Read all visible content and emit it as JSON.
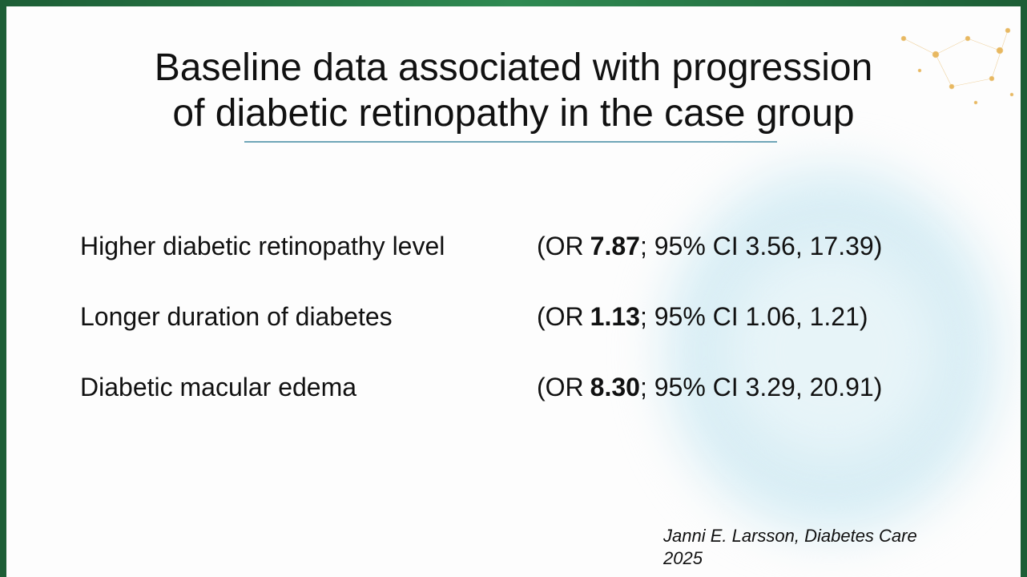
{
  "slide": {
    "title": [
      "Baseline data associated with progression",
      "of diabetic retinopathy in the case group"
    ],
    "rows": [
      {
        "label": "Higher diabetic retinopathy level",
        "or_prefix": "(OR",
        "or": "7.87",
        "ci": "; 95% CI 3.56, 17.39)"
      },
      {
        "label": "Longer duration of diabetes",
        "or_prefix": "(OR",
        "or": "1.13",
        "ci": "; 95% CI 1.06, 1.21)"
      },
      {
        "label": "Diabetic macular edema",
        "or_prefix": "(OR",
        "or": "8.30",
        "ci": "; 95% CI 3.29, 20.91)"
      }
    ],
    "citation": [
      "Janni E. Larsson, Diabetes Care",
      "2025"
    ]
  }
}
